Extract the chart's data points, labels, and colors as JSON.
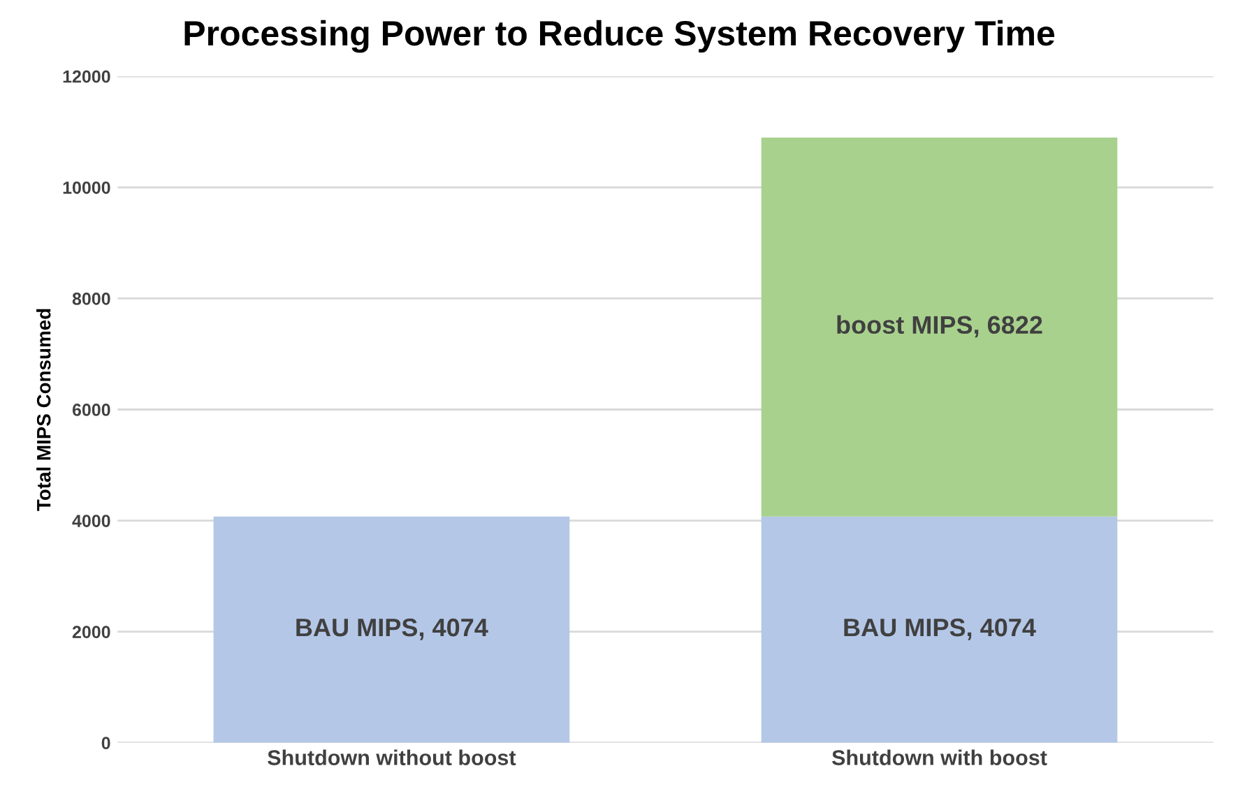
{
  "chart_data": {
    "type": "bar",
    "stacked": true,
    "title": "Processing Power to Reduce System Recovery Time",
    "ylabel": "Total MIPS Consumed",
    "categories": [
      "Shutdown without boost",
      "Shutdown with boost"
    ],
    "series": [
      {
        "color": "#b4c7e7",
        "values": [
          4074,
          4074
        ],
        "value_labels": [
          "BAU MIPS, 4074",
          "BAU MIPS, 4074"
        ]
      },
      {
        "color": "#a9d18e",
        "values": [
          null,
          6822
        ],
        "value_labels": [
          null,
          "boost MIPS, 6822"
        ]
      }
    ],
    "ylim": [
      0,
      12000
    ],
    "yticks": [
      0,
      2000,
      4000,
      6000,
      8000,
      10000,
      12000
    ],
    "grid": "y",
    "legend": false
  }
}
